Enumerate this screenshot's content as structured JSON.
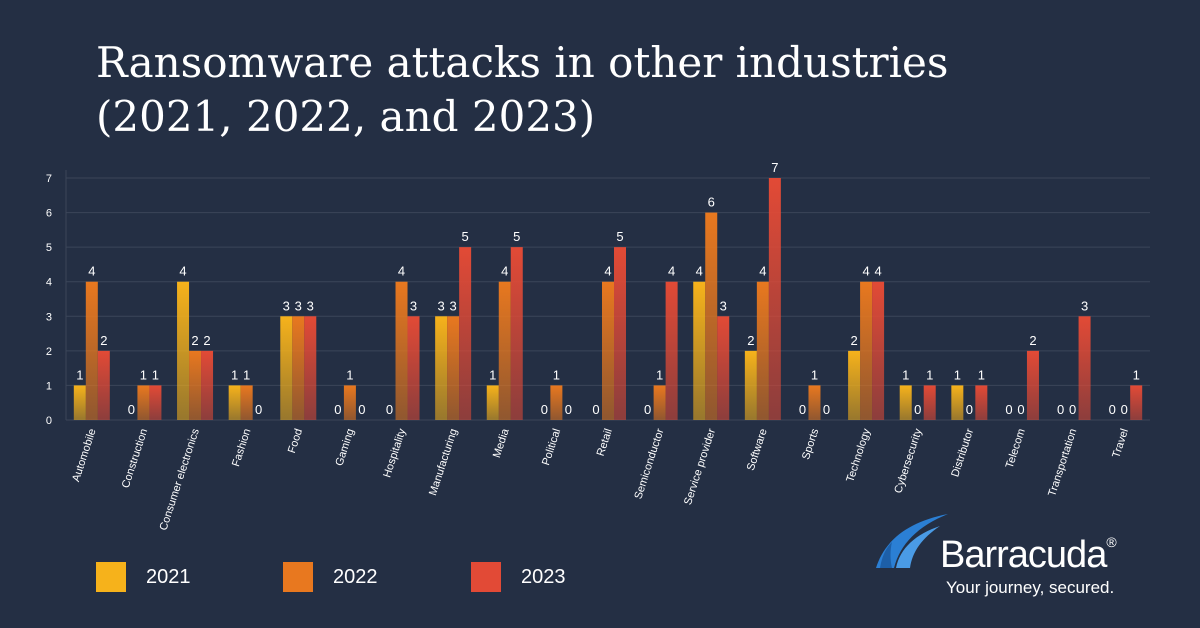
{
  "title_line1": "Ransomware attacks in other industries",
  "title_line2": "(2021, 2022, and 2023)",
  "chart_data": {
    "type": "bar",
    "title": "Ransomware attacks in other industries (2021, 2022, and 2023)",
    "categories": [
      "Automobile",
      "Construction",
      "Consumer electronics",
      "Fashion",
      "Food",
      "Gaming",
      "Hospitality",
      "Manufacturing",
      "Media",
      "Political",
      "Retail",
      "Semiconductor",
      "Service provider",
      "Software",
      "Sports",
      "Technology",
      "Cybersecurity",
      "Distributor",
      "Telecom",
      "Transportation",
      "Travel"
    ],
    "series": [
      {
        "name": "2021",
        "color": "#f6b21b",
        "values": [
          1,
          0,
          4,
          1,
          3,
          0,
          0,
          3,
          1,
          0,
          0,
          0,
          4,
          2,
          0,
          2,
          1,
          1,
          0,
          0,
          0
        ]
      },
      {
        "name": "2022",
        "color": "#e8781f",
        "values": [
          4,
          1,
          2,
          1,
          3,
          1,
          4,
          3,
          4,
          1,
          4,
          1,
          6,
          4,
          1,
          4,
          0,
          0,
          0,
          0,
          0
        ]
      },
      {
        "name": "2023",
        "color": "#e24a36",
        "values": [
          2,
          1,
          2,
          0,
          3,
          0,
          3,
          5,
          5,
          0,
          5,
          4,
          3,
          7,
          0,
          4,
          1,
          1,
          2,
          3,
          1
        ]
      }
    ],
    "yticks": [
      0,
      1,
      2,
      3,
      4,
      5,
      6,
      7
    ],
    "ylim": [
      0,
      7
    ],
    "grid": true,
    "legend_position": "bottom-left"
  },
  "logo": {
    "name": "Barracuda",
    "registered_mark": "®",
    "tagline": "Your journey, secured.",
    "icon": "wave-icon",
    "accent_color": "#2b7fd4"
  }
}
